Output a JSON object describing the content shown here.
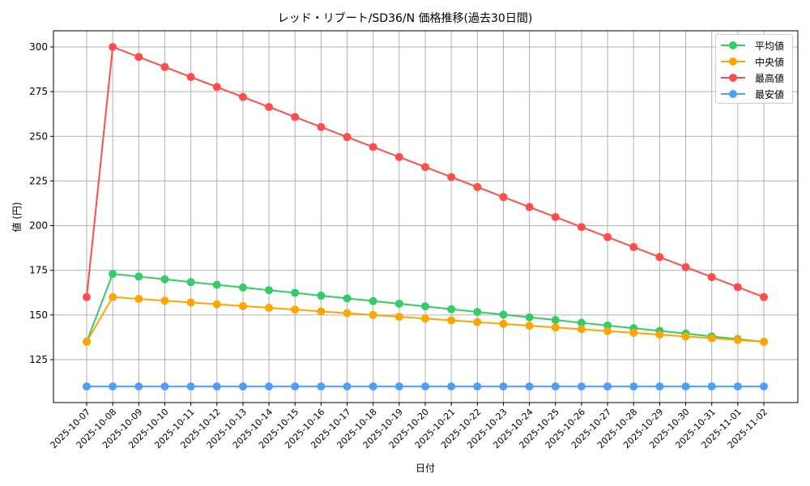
{
  "chart_data": {
    "type": "line",
    "title": "レッド・リブート/SD36/N 価格推移(過去30日間)",
    "xlabel": "日付",
    "ylabel": "値 (円)",
    "ylim": [
      101,
      309
    ],
    "yticks": [
      125,
      150,
      175,
      200,
      225,
      250,
      275,
      300
    ],
    "grid": true,
    "legend_position": "upper right",
    "categories": [
      "2025-10-07",
      "2025-10-08",
      "2025-10-09",
      "2025-10-10",
      "2025-10-11",
      "2025-10-12",
      "2025-10-13",
      "2025-10-14",
      "2025-10-15",
      "2025-10-16",
      "2025-10-17",
      "2025-10-18",
      "2025-10-19",
      "2025-10-20",
      "2025-10-21",
      "2025-10-22",
      "2025-10-23",
      "2025-10-24",
      "2025-10-25",
      "2025-10-26",
      "2025-10-27",
      "2025-10-28",
      "2025-10-29",
      "2025-10-30",
      "2025-10-31",
      "2025-11-01",
      "2025-11-02"
    ],
    "series": [
      {
        "name": "平均値",
        "color": "#33cc66",
        "values": [
          135,
          173,
          171.5,
          170,
          168.4,
          166.9,
          165.4,
          163.9,
          162.4,
          160.8,
          159.3,
          157.8,
          156.3,
          154.8,
          153.2,
          151.7,
          150.2,
          148.7,
          147.2,
          145.6,
          144.1,
          142.6,
          141.1,
          139.6,
          138,
          136.5,
          135
        ]
      },
      {
        "name": "中央値",
        "color": "#ffa500",
        "values": [
          135,
          160,
          159,
          158,
          157,
          156,
          155,
          154,
          153,
          152,
          151,
          150,
          149,
          148,
          147,
          146,
          145,
          144,
          143,
          142,
          141,
          140,
          139,
          138,
          137,
          136,
          135
        ]
      },
      {
        "name": "最高値",
        "color": "#ff4d4d",
        "values": [
          160,
          300,
          294.4,
          288.8,
          283.2,
          277.6,
          272,
          266.4,
          260.8,
          255.2,
          249.6,
          244,
          238.4,
          232.8,
          227.2,
          221.6,
          216,
          210.4,
          204.8,
          199.2,
          193.6,
          188,
          182.4,
          176.8,
          171.2,
          165.6,
          160
        ]
      },
      {
        "name": "最安値",
        "color": "#4d9fff",
        "values": [
          110,
          110,
          110,
          110,
          110,
          110,
          110,
          110,
          110,
          110,
          110,
          110,
          110,
          110,
          110,
          110,
          110,
          110,
          110,
          110,
          110,
          110,
          110,
          110,
          110,
          110,
          110
        ]
      }
    ]
  }
}
